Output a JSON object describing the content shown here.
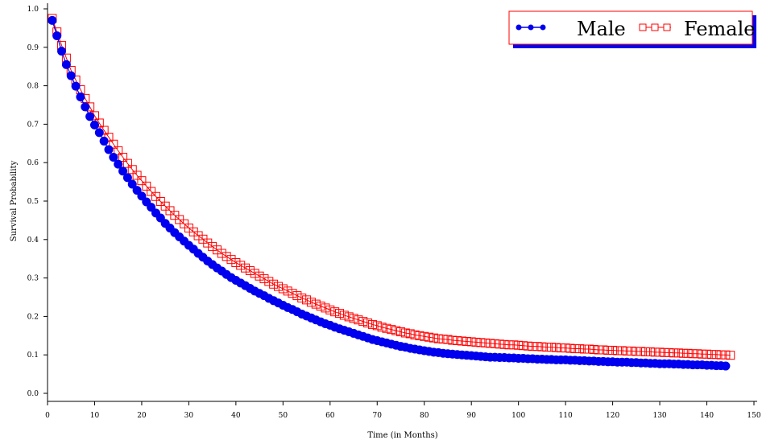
{
  "chart_data": {
    "type": "scatter",
    "xlabel": "Time (in Months)",
    "ylabel": "Survival Probability",
    "xlim": [
      0,
      150
    ],
    "ylim": [
      0,
      1.0
    ],
    "xticks": [
      0,
      10,
      20,
      30,
      40,
      50,
      60,
      70,
      80,
      90,
      100,
      110,
      120,
      130,
      140,
      150
    ],
    "yticks": [
      0.0,
      0.1,
      0.2,
      0.3,
      0.4,
      0.5,
      0.6,
      0.7,
      0.8,
      0.9,
      1.0
    ],
    "xtick_labels": [
      "0",
      "10",
      "20",
      "30",
      "40",
      "50",
      "60",
      "70",
      "80",
      "90",
      "100",
      "110",
      "120",
      "130",
      "140",
      "150"
    ],
    "ytick_labels": [
      "0.0",
      "0.1",
      "0.2",
      "0.3",
      "0.4",
      "0.5",
      "0.6",
      "0.7",
      "0.8",
      "0.9",
      "1.0"
    ],
    "grid": false,
    "legend_position": "top-right",
    "series": [
      {
        "name": "Male",
        "color": "#0000ee",
        "marker": "filled-circle",
        "x": [
          1,
          2,
          3,
          4,
          5,
          6,
          7,
          8,
          9,
          10,
          11,
          12,
          13,
          14,
          15,
          16,
          17,
          18,
          19,
          20,
          21,
          22,
          23,
          24,
          25,
          26,
          27,
          28,
          29,
          30,
          31,
          32,
          33,
          34,
          35,
          36,
          37,
          38,
          39,
          40,
          41,
          42,
          43,
          44,
          45,
          46,
          47,
          48,
          49,
          50,
          51,
          52,
          53,
          54,
          55,
          56,
          57,
          58,
          59,
          60,
          61,
          62,
          63,
          64,
          65,
          66,
          67,
          68,
          69,
          70,
          71,
          72,
          73,
          74,
          75,
          76,
          77,
          78,
          79,
          80,
          81,
          82,
          83,
          84,
          85,
          86,
          87,
          88,
          89,
          90,
          91,
          92,
          93,
          94,
          95,
          96,
          97,
          98,
          99,
          100,
          101,
          102,
          103,
          104,
          105,
          106,
          107,
          108,
          109,
          110,
          111,
          112,
          113,
          114,
          115,
          116,
          117,
          118,
          119,
          120,
          121,
          122,
          123,
          124,
          125,
          126,
          127,
          128,
          129,
          130,
          131,
          132,
          133,
          134,
          135,
          136,
          137,
          138,
          139,
          140,
          141,
          142,
          143,
          144
        ],
        "y": [
          0.97,
          0.93,
          0.89,
          0.855,
          0.826,
          0.799,
          0.771,
          0.745,
          0.72,
          0.698,
          0.678,
          0.656,
          0.634,
          0.614,
          0.596,
          0.578,
          0.561,
          0.544,
          0.528,
          0.513,
          0.498,
          0.484,
          0.469,
          0.456,
          0.442,
          0.43,
          0.418,
          0.407,
          0.396,
          0.385,
          0.375,
          0.364,
          0.354,
          0.344,
          0.335,
          0.326,
          0.318,
          0.309,
          0.301,
          0.294,
          0.287,
          0.28,
          0.273,
          0.266,
          0.26,
          0.254,
          0.247,
          0.241,
          0.235,
          0.229,
          0.223,
          0.218,
          0.212,
          0.206,
          0.201,
          0.196,
          0.191,
          0.186,
          0.181,
          0.177,
          0.172,
          0.168,
          0.164,
          0.16,
          0.156,
          0.152,
          0.148,
          0.144,
          0.14,
          0.137,
          0.134,
          0.131,
          0.128,
          0.125,
          0.122,
          0.12,
          0.117,
          0.115,
          0.113,
          0.111,
          0.109,
          0.107,
          0.106,
          0.104,
          0.103,
          0.102,
          0.101,
          0.1,
          0.099,
          0.098,
          0.097,
          0.096,
          0.095,
          0.094,
          0.094,
          0.093,
          0.093,
          0.092,
          0.092,
          0.091,
          0.091,
          0.09,
          0.09,
          0.089,
          0.089,
          0.088,
          0.088,
          0.087,
          0.087,
          0.087,
          0.086,
          0.086,
          0.085,
          0.085,
          0.084,
          0.084,
          0.083,
          0.083,
          0.082,
          0.082,
          0.081,
          0.081,
          0.081,
          0.08,
          0.08,
          0.079,
          0.079,
          0.078,
          0.078,
          0.077,
          0.077,
          0.077,
          0.076,
          0.076,
          0.075,
          0.075,
          0.074,
          0.074,
          0.074,
          0.073,
          0.073,
          0.072,
          0.072,
          0.071
        ]
      },
      {
        "name": "Female",
        "color": "#ff0000",
        "marker": "open-square",
        "x": [
          1,
          2,
          3,
          4,
          5,
          6,
          7,
          8,
          9,
          10,
          11,
          12,
          13,
          14,
          15,
          16,
          17,
          18,
          19,
          20,
          21,
          22,
          23,
          24,
          25,
          26,
          27,
          28,
          29,
          30,
          31,
          32,
          33,
          34,
          35,
          36,
          37,
          38,
          39,
          40,
          41,
          42,
          43,
          44,
          45,
          46,
          47,
          48,
          49,
          50,
          51,
          52,
          53,
          54,
          55,
          56,
          57,
          58,
          59,
          60,
          61,
          62,
          63,
          64,
          65,
          66,
          67,
          68,
          69,
          70,
          71,
          72,
          73,
          74,
          75,
          76,
          77,
          78,
          79,
          80,
          81,
          82,
          83,
          84,
          85,
          86,
          87,
          88,
          89,
          90,
          91,
          92,
          93,
          94,
          95,
          96,
          97,
          98,
          99,
          100,
          101,
          102,
          103,
          104,
          105,
          106,
          107,
          108,
          109,
          110,
          111,
          112,
          113,
          114,
          115,
          116,
          117,
          118,
          119,
          120,
          121,
          122,
          123,
          124,
          125,
          126,
          127,
          128,
          129,
          130,
          131,
          132,
          133,
          134,
          135,
          136,
          137,
          138,
          139,
          140,
          141,
          142,
          143,
          144,
          145
        ],
        "y": [
          0.975,
          0.94,
          0.905,
          0.872,
          0.84,
          0.815,
          0.79,
          0.767,
          0.745,
          0.722,
          0.703,
          0.684,
          0.666,
          0.648,
          0.631,
          0.614,
          0.598,
          0.582,
          0.567,
          0.553,
          0.539,
          0.525,
          0.512,
          0.499,
          0.487,
          0.475,
          0.463,
          0.452,
          0.441,
          0.43,
          0.42,
          0.41,
          0.401,
          0.391,
          0.382,
          0.373,
          0.364,
          0.356,
          0.348,
          0.34,
          0.333,
          0.326,
          0.319,
          0.312,
          0.305,
          0.298,
          0.291,
          0.284,
          0.278,
          0.272,
          0.266,
          0.26,
          0.254,
          0.248,
          0.243,
          0.237,
          0.232,
          0.227,
          0.222,
          0.217,
          0.212,
          0.208,
          0.203,
          0.199,
          0.195,
          0.191,
          0.187,
          0.183,
          0.179,
          0.176,
          0.172,
          0.169,
          0.166,
          0.163,
          0.16,
          0.157,
          0.155,
          0.152,
          0.15,
          0.148,
          0.146,
          0.144,
          0.142,
          0.141,
          0.14,
          0.138,
          0.137,
          0.136,
          0.135,
          0.134,
          0.133,
          0.132,
          0.131,
          0.13,
          0.129,
          0.128,
          0.127,
          0.126,
          0.126,
          0.125,
          0.124,
          0.123,
          0.122,
          0.122,
          0.121,
          0.12,
          0.12,
          0.119,
          0.118,
          0.118,
          0.117,
          0.116,
          0.116,
          0.115,
          0.115,
          0.114,
          0.113,
          0.113,
          0.112,
          0.112,
          0.111,
          0.111,
          0.11,
          0.11,
          0.109,
          0.109,
          0.108,
          0.108,
          0.107,
          0.107,
          0.106,
          0.106,
          0.105,
          0.105,
          0.104,
          0.104,
          0.103,
          0.103,
          0.102,
          0.102,
          0.101,
          0.101,
          0.1,
          0.1,
          0.099
        ]
      }
    ]
  }
}
